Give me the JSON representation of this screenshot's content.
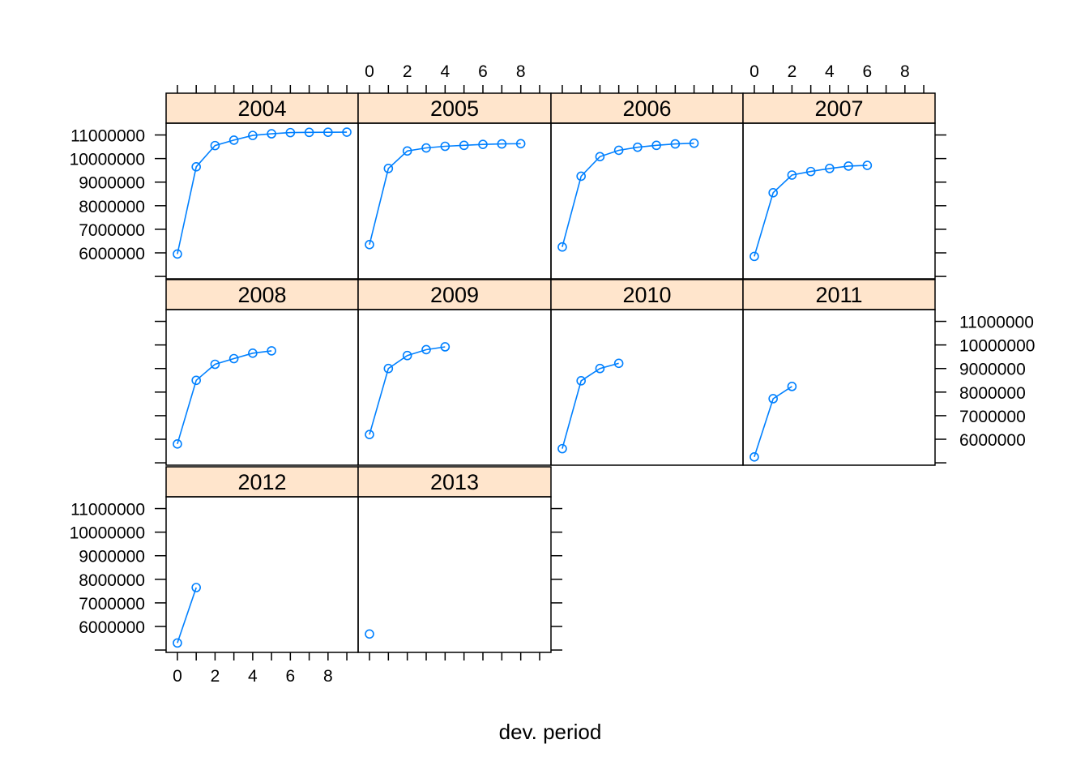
{
  "chart_data": {
    "type": "line",
    "xlabel": "dev. period",
    "ylabel": "",
    "xlim": [
      -0.6,
      9.6
    ],
    "ylim": [
      4900000,
      11500000
    ],
    "x_ticks": [
      0,
      2,
      4,
      6,
      8
    ],
    "y_ticks": [
      6000000,
      7000000,
      8000000,
      9000000,
      10000000,
      11000000
    ],
    "y_tick_labels": [
      "6000000",
      "7000000",
      "8000000",
      "9000000",
      "10000000",
      "11000000"
    ],
    "x_tick_labels": [
      "0",
      "2",
      "4",
      "6",
      "8"
    ],
    "strip_color": "#ffe5cc",
    "series_color": "#0080ff",
    "layout": "4 columns x 3 rows, panels filled bottom-up",
    "panels": [
      {
        "name": "2004",
        "x": [
          0,
          1,
          2,
          3,
          4,
          5,
          6,
          7,
          8,
          9
        ],
        "values": [
          5950000,
          9650000,
          10550000,
          10780000,
          10980000,
          11050000,
          11100000,
          11110000,
          11115000,
          11120000
        ]
      },
      {
        "name": "2005",
        "x": [
          0,
          1,
          2,
          3,
          4,
          5,
          6,
          7,
          8
        ],
        "values": [
          6350000,
          9580000,
          10320000,
          10450000,
          10520000,
          10560000,
          10600000,
          10620000,
          10630000
        ]
      },
      {
        "name": "2006",
        "x": [
          0,
          1,
          2,
          3,
          4,
          5,
          6,
          7
        ],
        "values": [
          6250000,
          9250000,
          10080000,
          10350000,
          10480000,
          10560000,
          10620000,
          10650000
        ]
      },
      {
        "name": "2007",
        "x": [
          0,
          1,
          2,
          3,
          4,
          5,
          6
        ],
        "values": [
          5850000,
          8550000,
          9300000,
          9450000,
          9580000,
          9680000,
          9710000
        ]
      },
      {
        "name": "2008",
        "x": [
          0,
          1,
          2,
          3,
          4,
          5
        ],
        "values": [
          5800000,
          8500000,
          9180000,
          9420000,
          9650000,
          9750000
        ]
      },
      {
        "name": "2009",
        "x": [
          0,
          1,
          2,
          3,
          4
        ],
        "values": [
          6200000,
          9000000,
          9550000,
          9800000,
          9920000
        ]
      },
      {
        "name": "2010",
        "x": [
          0,
          1,
          2,
          3
        ],
        "values": [
          5600000,
          8480000,
          9000000,
          9220000
        ]
      },
      {
        "name": "2011",
        "x": [
          0,
          1,
          2
        ],
        "values": [
          5250000,
          7720000,
          8240000
        ]
      },
      {
        "name": "2012",
        "x": [
          0,
          1
        ],
        "values": [
          5300000,
          7650000
        ]
      },
      {
        "name": "2013",
        "x": [
          0
        ],
        "values": [
          5680000
        ]
      }
    ]
  }
}
